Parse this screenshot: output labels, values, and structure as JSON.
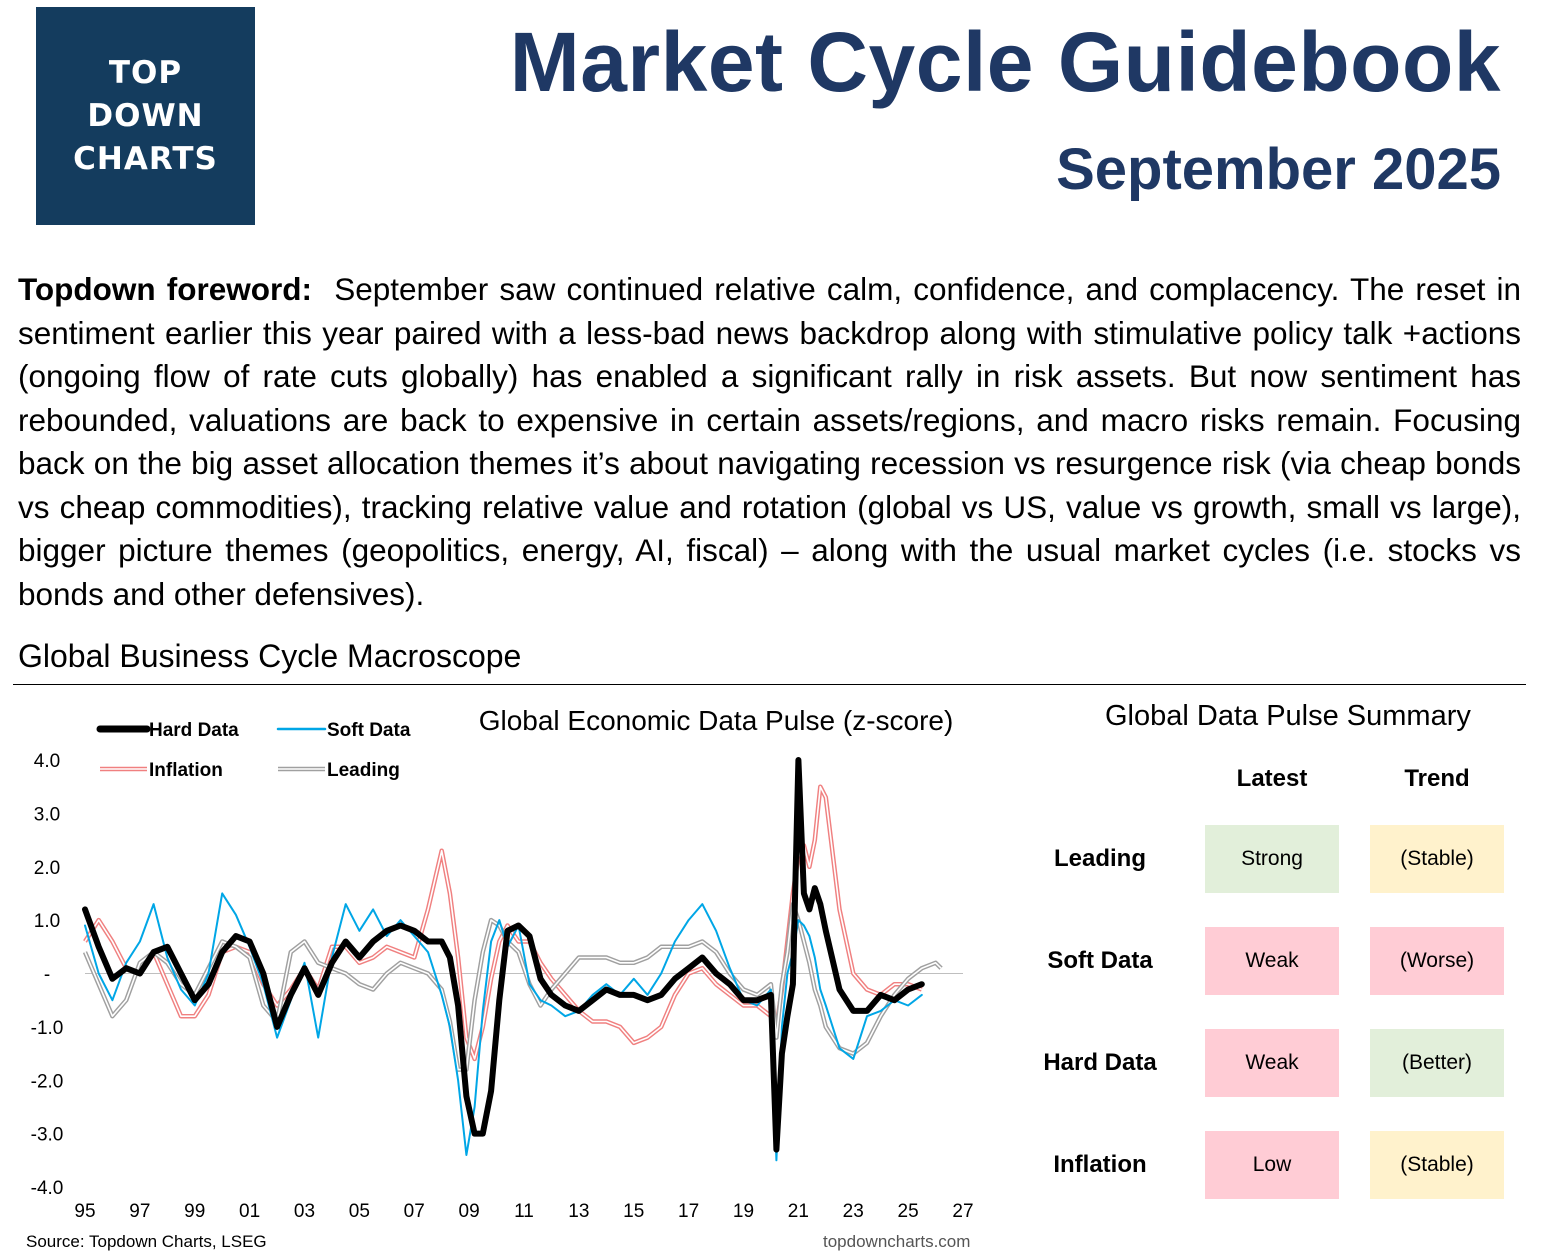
{
  "logo": {
    "text": "TOP\nDOWN\nCHARTS"
  },
  "header": {
    "title": "Market Cycle Guidebook",
    "date": "September 2025"
  },
  "foreword": {
    "label": "Topdown foreword:",
    "text": "September saw continued relative calm, confidence, and complacency.  The reset in sentiment earlier this year paired with a less-bad news backdrop along with stimulative policy talk +actions (ongoing flow of rate cuts globally) has enabled a significant rally in risk assets.  But now sentiment has rebounded, valuations are back to expensive in certain assets/regions, and macro risks remain.  Focusing back on the big asset allocation themes it’s about navigating recession vs resurgence risk (via cheap bonds vs cheap commodities), tracking relative value and rotation (global vs US, value vs growth, small vs large), bigger picture themes (geopolitics, energy, AI, fiscal) – along with the usual market cycles (i.e. stocks vs bonds and other defensives)."
  },
  "section": {
    "title": "Global Business Cycle Macroscope"
  },
  "chart_data": {
    "type": "line",
    "title": "Global Economic Data Pulse (z-score)",
    "xlabel": "",
    "ylabel": "",
    "xlim": [
      1995,
      2027
    ],
    "ylim": [
      -4,
      4
    ],
    "y_ticks": [
      4,
      3,
      2,
      1,
      0,
      -1,
      -2,
      -3,
      -4
    ],
    "y_tick_labels": [
      "4.0",
      "3.0",
      "2.0",
      "1.0",
      "-",
      "-1.0",
      "-2.0",
      "-3.0",
      "-4.0"
    ],
    "x_ticks": [
      1995,
      1997,
      1999,
      2001,
      2003,
      2005,
      2007,
      2009,
      2011,
      2013,
      2015,
      2017,
      2019,
      2021,
      2023,
      2025,
      2027
    ],
    "x_tick_labels": [
      "95",
      "97",
      "99",
      "01",
      "03",
      "05",
      "07",
      "09",
      "11",
      "13",
      "15",
      "17",
      "19",
      "21",
      "23",
      "25",
      "27"
    ],
    "legend_position": "top-left",
    "series": [
      {
        "name": "Hard Data",
        "color": "#000000",
        "style": "thick",
        "x": [
          1995,
          1995.5,
          1996,
          1996.5,
          1997,
          1997.5,
          1998,
          1998.5,
          1999,
          1999.5,
          2000,
          2000.5,
          2001,
          2001.5,
          2002,
          2002.5,
          2003,
          2003.5,
          2004,
          2004.5,
          2005,
          2005.5,
          2006,
          2006.5,
          2007,
          2007.5,
          2008,
          2008.3,
          2008.6,
          2008.9,
          2009.2,
          2009.5,
          2009.8,
          2010.1,
          2010.4,
          2010.8,
          2011.2,
          2011.6,
          2012,
          2012.5,
          2013,
          2013.5,
          2014,
          2014.5,
          2015,
          2015.5,
          2016,
          2016.5,
          2017,
          2017.5,
          2018,
          2018.5,
          2019,
          2019.5,
          2020,
          2020.2,
          2020.4,
          2020.6,
          2020.8,
          2021,
          2021.2,
          2021.4,
          2021.6,
          2021.8,
          2022,
          2022.5,
          2023,
          2023.5,
          2024,
          2024.5,
          2025,
          2025.5
        ],
        "values": [
          1.2,
          0.5,
          -0.1,
          0.1,
          0.0,
          0.4,
          0.5,
          0.0,
          -0.5,
          -0.2,
          0.4,
          0.7,
          0.6,
          0.0,
          -1.0,
          -0.4,
          0.1,
          -0.4,
          0.2,
          0.6,
          0.3,
          0.6,
          0.8,
          0.9,
          0.8,
          0.6,
          0.6,
          0.3,
          -0.6,
          -2.3,
          -3.0,
          -3.0,
          -2.2,
          -0.5,
          0.8,
          0.9,
          0.7,
          -0.1,
          -0.4,
          -0.6,
          -0.7,
          -0.5,
          -0.3,
          -0.4,
          -0.4,
          -0.5,
          -0.4,
          -0.1,
          0.1,
          0.3,
          0.0,
          -0.2,
          -0.5,
          -0.5,
          -0.4,
          -3.3,
          -1.5,
          -0.8,
          -0.2,
          4.0,
          1.5,
          1.2,
          1.6,
          1.3,
          0.8,
          -0.3,
          -0.7,
          -0.7,
          -0.4,
          -0.5,
          -0.3,
          -0.2
        ]
      },
      {
        "name": "Soft Data",
        "color": "#00a6e6",
        "style": "thin",
        "x": [
          1995,
          1995.5,
          1996,
          1996.5,
          1997,
          1997.5,
          1998,
          1998.5,
          1999,
          1999.5,
          2000,
          2000.5,
          2001,
          2001.5,
          2002,
          2002.5,
          2003,
          2003.5,
          2004,
          2004.5,
          2005,
          2005.5,
          2006,
          2006.5,
          2007,
          2007.5,
          2008,
          2008.3,
          2008.6,
          2008.9,
          2009.2,
          2009.5,
          2009.8,
          2010.1,
          2010.4,
          2010.8,
          2011.2,
          2011.6,
          2012,
          2012.5,
          2013,
          2013.5,
          2014,
          2014.5,
          2015,
          2015.5,
          2016,
          2016.5,
          2017,
          2017.5,
          2018,
          2018.5,
          2019,
          2019.5,
          2020,
          2020.2,
          2020.4,
          2020.6,
          2020.8,
          2021,
          2021.2,
          2021.4,
          2021.6,
          2021.8,
          2022,
          2022.5,
          2023,
          2023.5,
          2024,
          2024.5,
          2025,
          2025.5
        ],
        "values": [
          0.9,
          0.0,
          -0.5,
          0.2,
          0.6,
          1.3,
          0.3,
          -0.3,
          -0.6,
          0.0,
          1.5,
          1.1,
          0.5,
          -0.2,
          -1.2,
          -0.5,
          0.2,
          -1.2,
          0.3,
          1.3,
          0.8,
          1.2,
          0.7,
          1.0,
          0.7,
          0.4,
          -0.4,
          -1.0,
          -2.0,
          -3.4,
          -2.5,
          -0.7,
          0.6,
          1.0,
          0.5,
          0.9,
          -0.2,
          -0.5,
          -0.6,
          -0.8,
          -0.7,
          -0.4,
          -0.2,
          -0.4,
          -0.1,
          -0.4,
          0.0,
          0.6,
          1.0,
          1.3,
          0.8,
          0.1,
          -0.5,
          -0.6,
          -0.3,
          -3.5,
          -1.0,
          0.0,
          0.4,
          1.0,
          0.9,
          0.7,
          0.3,
          -0.3,
          -0.6,
          -1.4,
          -1.6,
          -0.8,
          -0.7,
          -0.5,
          -0.6,
          -0.4
        ]
      },
      {
        "name": "Inflation",
        "color": "#f08080",
        "style": "double",
        "x": [
          1995,
          1995.5,
          1996,
          1996.5,
          1997,
          1997.5,
          1998,
          1998.5,
          1999,
          1999.5,
          2000,
          2000.5,
          2001,
          2001.5,
          2002,
          2002.5,
          2003,
          2003.5,
          2004,
          2004.5,
          2005,
          2005.5,
          2006,
          2006.5,
          2007,
          2007.5,
          2008,
          2008.3,
          2008.6,
          2008.9,
          2009.2,
          2009.5,
          2009.8,
          2010.1,
          2010.4,
          2010.8,
          2011.2,
          2011.6,
          2012,
          2012.5,
          2013,
          2013.5,
          2014,
          2014.5,
          2015,
          2015.5,
          2016,
          2016.5,
          2017,
          2017.5,
          2018,
          2018.5,
          2019,
          2019.5,
          2020,
          2020.2,
          2020.4,
          2020.6,
          2020.8,
          2021,
          2021.2,
          2021.4,
          2021.6,
          2021.8,
          2022,
          2022.5,
          2023,
          2023.5,
          2024,
          2024.5,
          2025,
          2025.5
        ],
        "values": [
          0.6,
          1.0,
          0.6,
          0.1,
          0.0,
          0.4,
          -0.2,
          -0.8,
          -0.8,
          -0.4,
          0.4,
          0.5,
          0.4,
          -0.2,
          -0.6,
          -0.3,
          0.1,
          -0.3,
          0.5,
          0.5,
          0.2,
          0.3,
          0.5,
          0.4,
          0.3,
          1.2,
          2.3,
          1.5,
          0.3,
          -1.2,
          -1.6,
          -1.0,
          -0.1,
          0.6,
          0.9,
          0.6,
          0.6,
          0.2,
          -0.1,
          -0.4,
          -0.7,
          -0.9,
          -0.9,
          -1.0,
          -1.3,
          -1.2,
          -1.0,
          -0.4,
          0.0,
          0.1,
          -0.2,
          -0.4,
          -0.6,
          -0.6,
          -0.8,
          -1.0,
          -0.3,
          0.6,
          1.5,
          2.2,
          2.4,
          2.0,
          2.5,
          3.5,
          3.3,
          1.2,
          0.0,
          -0.3,
          -0.4,
          -0.2,
          -0.2,
          -0.3
        ]
      },
      {
        "name": "Leading",
        "color": "#a0a0a0",
        "style": "double",
        "x": [
          1995,
          1995.5,
          1996,
          1996.5,
          1997,
          1997.5,
          1998,
          1998.5,
          1999,
          1999.5,
          2000,
          2000.5,
          2001,
          2001.5,
          2002,
          2002.5,
          2003,
          2003.5,
          2004,
          2004.5,
          2005,
          2005.5,
          2006,
          2006.5,
          2007,
          2007.5,
          2008,
          2008.3,
          2008.6,
          2008.9,
          2009.2,
          2009.5,
          2009.8,
          2010.1,
          2010.4,
          2010.8,
          2011.2,
          2011.6,
          2012,
          2012.5,
          2013,
          2013.5,
          2014,
          2014.5,
          2015,
          2015.5,
          2016,
          2016.5,
          2017,
          2017.5,
          2018,
          2018.5,
          2019,
          2019.5,
          2020,
          2020.2,
          2020.4,
          2020.6,
          2020.8,
          2021,
          2021.2,
          2021.4,
          2021.6,
          2021.8,
          2022,
          2022.5,
          2023,
          2023.5,
          2024,
          2024.5,
          2025,
          2025.5,
          2026,
          2026.2
        ],
        "values": [
          0.4,
          -0.2,
          -0.8,
          -0.5,
          0.2,
          0.4,
          0.2,
          -0.2,
          -0.4,
          0.1,
          0.6,
          0.5,
          0.3,
          -0.6,
          -0.9,
          0.4,
          0.6,
          0.2,
          0.1,
          0.0,
          -0.2,
          -0.3,
          0.0,
          0.2,
          0.1,
          0.0,
          -0.3,
          -0.9,
          -1.8,
          -1.8,
          -0.5,
          0.4,
          1.0,
          0.9,
          0.6,
          0.4,
          -0.2,
          -0.6,
          -0.3,
          0.0,
          0.3,
          0.3,
          0.3,
          0.2,
          0.2,
          0.3,
          0.5,
          0.5,
          0.5,
          0.6,
          0.4,
          0.0,
          -0.3,
          -0.4,
          -0.2,
          -1.2,
          -0.2,
          0.4,
          1.3,
          1.0,
          0.6,
          0.2,
          -0.3,
          -0.6,
          -1.0,
          -1.4,
          -1.5,
          -1.3,
          -0.8,
          -0.4,
          -0.1,
          0.1,
          0.2,
          0.1
        ]
      }
    ]
  },
  "summary": {
    "title": "Global Data Pulse Summary",
    "col_latest": "Latest",
    "col_trend": "Trend",
    "rows": [
      {
        "label": "Leading",
        "latest": "Strong",
        "latest_color": "#e2efda",
        "trend": "(Stable)",
        "trend_color": "#fff2cc"
      },
      {
        "label": "Soft Data",
        "latest": "Weak",
        "latest_color": "#ffccd5",
        "trend": "(Worse)",
        "trend_color": "#ffccd5"
      },
      {
        "label": "Hard Data",
        "latest": "Weak",
        "latest_color": "#ffccd5",
        "trend": "(Better)",
        "trend_color": "#e2efda"
      },
      {
        "label": "Inflation",
        "latest": "Low",
        "latest_color": "#ffccd5",
        "trend": "(Stable)",
        "trend_color": "#fff2cc"
      }
    ]
  },
  "footer": {
    "source": "Source: Topdown Charts, LSEG",
    "site": "topdowncharts.com"
  }
}
